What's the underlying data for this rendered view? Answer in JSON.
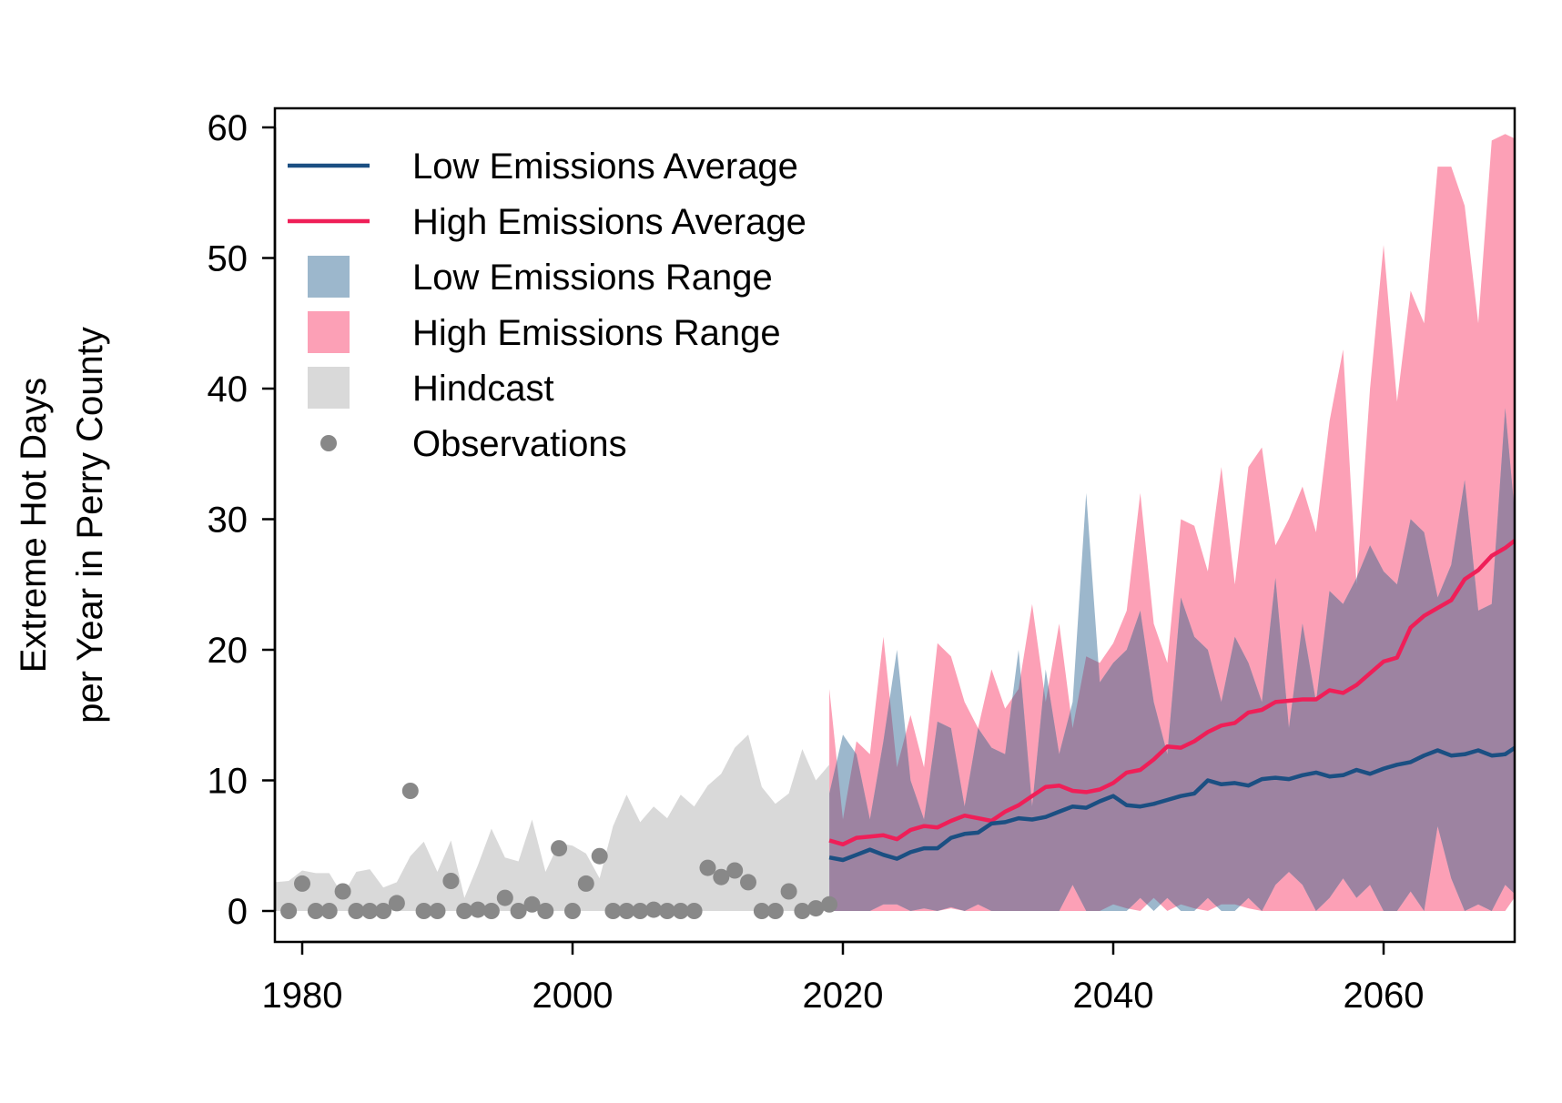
{
  "chart_data": {
    "type": "area",
    "xlabel": "",
    "ylabel_lines": [
      "Extreme Hot Days",
      "per Year in Perry County"
    ],
    "xlim": [
      1977,
      2071
    ],
    "ylim": [
      -2,
      60
    ],
    "xticks": [
      1980,
      2000,
      2020,
      2040,
      2060
    ],
    "yticks": [
      0,
      10,
      20,
      30,
      40,
      50,
      60
    ],
    "legend_position": "top-left",
    "colors": {
      "low_avg": "#1b4f82",
      "high_avg": "#ef1f58",
      "low_range": "#9cb7cc",
      "high_range": "#fca0b6",
      "overlap": "#9d83a1",
      "hindcast": "#d9d9d9",
      "observations": "#888888"
    },
    "legend": [
      {
        "label": "Low Emissions Average",
        "kind": "line",
        "color": "#1b4f82"
      },
      {
        "label": "High Emissions Average",
        "kind": "line",
        "color": "#ef1f58"
      },
      {
        "label": "Low Emissions Range",
        "kind": "box",
        "color": "#9cb7cc"
      },
      {
        "label": "High Emissions Range",
        "kind": "box",
        "color": "#fca0b6"
      },
      {
        "label": "Hindcast",
        "kind": "box",
        "color": "#d9d9d9"
      },
      {
        "label": "Observations",
        "kind": "point",
        "color": "#888888"
      }
    ],
    "series": {
      "hindcast": {
        "x": [
          1977,
          1978,
          1979,
          1980,
          1981,
          1982,
          1983,
          1984,
          1985,
          1986,
          1987,
          1988,
          1989,
          1990,
          1991,
          1992,
          1993,
          1994,
          1995,
          1996,
          1997,
          1998,
          1999,
          2000,
          2001,
          2002,
          2003,
          2004,
          2005,
          2006,
          2007,
          2008,
          2009,
          2010,
          2011,
          2012,
          2013,
          2014,
          2015,
          2016,
          2017,
          2018,
          2019
        ],
        "upper": [
          2.2,
          2.2,
          2.3,
          3.1,
          2.9,
          2.9,
          1.2,
          3,
          3.2,
          1.8,
          2.2,
          4.2,
          5.3,
          3,
          5.4,
          1,
          3.5,
          6.3,
          4.1,
          3.8,
          7,
          3,
          5.2,
          5,
          4.4,
          2.5,
          6.5,
          8.9,
          6.8,
          8,
          7.1,
          8.9,
          8,
          9.6,
          10.5,
          12.5,
          13.5,
          9.5,
          8.2,
          9,
          12.4,
          10,
          11.2
        ],
        "lower": [
          0,
          0,
          0,
          0,
          0,
          0,
          0,
          0,
          0,
          0,
          0,
          0,
          0,
          0,
          0,
          0,
          0,
          0,
          0,
          0,
          0,
          0,
          0,
          0,
          0,
          0,
          0,
          0,
          0,
          0,
          0,
          0,
          0,
          0,
          0,
          0,
          0,
          0,
          0,
          0,
          0,
          0,
          0
        ]
      },
      "observations": {
        "x": [
          1979,
          1980,
          1981,
          1982,
          1983,
          1984,
          1985,
          1986,
          1987,
          1988,
          1989,
          1990,
          1991,
          1992,
          1993,
          1994,
          1995,
          1996,
          1997,
          1998,
          1999,
          2000,
          2001,
          2002,
          2003,
          2004,
          2005,
          2006,
          2007,
          2008,
          2009,
          2010,
          2011,
          2012,
          2013,
          2014,
          2015,
          2016,
          2017,
          2018,
          2019
        ],
        "y": [
          0,
          2.1,
          0,
          0,
          1.5,
          0,
          0,
          0,
          0.6,
          9.2,
          0,
          0,
          2.3,
          0,
          0.1,
          0,
          1,
          0,
          0.5,
          0,
          4.8,
          0,
          2.1,
          4.2,
          0,
          0,
          0,
          0.1,
          0,
          0,
          0,
          3.3,
          2.6,
          3.1,
          2.2,
          0,
          0,
          1.5,
          0,
          0.2,
          0.5
        ]
      },
      "low_range": {
        "x": [
          2019,
          2020,
          2021,
          2022,
          2023,
          2024,
          2025,
          2026,
          2027,
          2028,
          2029,
          2030,
          2031,
          2032,
          2033,
          2034,
          2035,
          2036,
          2037,
          2038,
          2039,
          2040,
          2041,
          2042,
          2043,
          2044,
          2045,
          2046,
          2047,
          2048,
          2049,
          2050,
          2051,
          2052,
          2053,
          2054,
          2055,
          2056,
          2057,
          2058,
          2059,
          2060,
          2061,
          2062,
          2063,
          2064,
          2065,
          2066,
          2067,
          2068,
          2069,
          2070,
          2071
        ],
        "upper": [
          9,
          13.5,
          12,
          7,
          13,
          20,
          10,
          7,
          14.5,
          14,
          8,
          14,
          12.5,
          12,
          20,
          8,
          18.5,
          12,
          16,
          32,
          17.5,
          19,
          20,
          23,
          16,
          12,
          24,
          21,
          20,
          16,
          21,
          19,
          16,
          25.5,
          14,
          22,
          16,
          24.5,
          23.5,
          25.5,
          28,
          26,
          25,
          30,
          29,
          24,
          26.5,
          33,
          23,
          23.5,
          38.5,
          27,
          25
        ],
        "lower": [
          0,
          0,
          0,
          0,
          0.5,
          0.5,
          0,
          0.2,
          0,
          0.3,
          0,
          0.5,
          0,
          0,
          0,
          0,
          0,
          0,
          2,
          0,
          0,
          0,
          0,
          1,
          0,
          1,
          0,
          0,
          1,
          0,
          0,
          1,
          0,
          2,
          3,
          2,
          0,
          1,
          2.5,
          1,
          2,
          0,
          0,
          1.5,
          0,
          6.5,
          2.5,
          0,
          0.5,
          0,
          2,
          1,
          0
        ]
      },
      "high_range": {
        "x": [
          2019,
          2020,
          2021,
          2022,
          2023,
          2024,
          2025,
          2026,
          2027,
          2028,
          2029,
          2030,
          2031,
          2032,
          2033,
          2034,
          2035,
          2036,
          2037,
          2038,
          2039,
          2040,
          2041,
          2042,
          2043,
          2044,
          2045,
          2046,
          2047,
          2048,
          2049,
          2050,
          2051,
          2052,
          2053,
          2054,
          2055,
          2056,
          2057,
          2058,
          2059,
          2060,
          2061,
          2062,
          2063,
          2064,
          2065,
          2066,
          2067,
          2068,
          2069,
          2070,
          2071
        ],
        "upper": [
          17,
          7,
          13,
          12,
          21,
          11,
          15,
          11,
          20.5,
          19.5,
          16,
          14,
          18.5,
          15.5,
          17,
          23.5,
          16,
          22,
          14,
          19.5,
          19,
          20.5,
          23,
          32,
          22,
          19,
          30,
          29.5,
          26,
          34,
          25,
          34,
          35.5,
          28,
          30,
          32.5,
          29,
          37.5,
          43,
          25,
          40,
          51,
          39,
          47.5,
          45,
          57,
          57,
          54,
          45,
          59,
          59.5,
          59,
          58
        ],
        "lower": [
          0,
          0,
          0,
          0,
          0,
          0,
          0,
          0,
          0,
          0.2,
          0,
          0,
          0,
          0,
          0,
          0,
          0,
          0,
          0,
          0,
          0,
          0.5,
          0.2,
          0,
          1,
          0,
          0.5,
          0.2,
          0,
          0.5,
          0.5,
          0.2,
          0,
          0,
          0,
          0,
          0,
          0,
          0,
          0,
          0,
          0,
          0,
          0,
          0,
          0,
          0,
          0,
          0,
          0,
          0,
          1.5,
          0
        ]
      },
      "low_avg": {
        "x": [
          2019,
          2020,
          2021,
          2022,
          2023,
          2024,
          2025,
          2026,
          2027,
          2028,
          2029,
          2030,
          2031,
          2032,
          2033,
          2034,
          2035,
          2036,
          2037,
          2038,
          2039,
          2040,
          2041,
          2042,
          2043,
          2044,
          2045,
          2046,
          2047,
          2048,
          2049,
          2050,
          2051,
          2052,
          2053,
          2054,
          2055,
          2056,
          2057,
          2058,
          2059,
          2060,
          2061,
          2062,
          2063,
          2064,
          2065,
          2066,
          2067,
          2068,
          2069,
          2070
        ],
        "y": [
          4.1,
          3.9,
          4.3,
          4.7,
          4.3,
          4,
          4.5,
          4.8,
          4.8,
          5.6,
          5.9,
          6,
          6.7,
          6.8,
          7.1,
          7,
          7.2,
          7.6,
          8,
          7.9,
          8.4,
          8.8,
          8.1,
          8,
          8.2,
          8.5,
          8.8,
          9,
          10,
          9.7,
          9.8,
          9.6,
          10.1,
          10.2,
          10.1,
          10.4,
          10.6,
          10.3,
          10.4,
          10.8,
          10.5,
          10.9,
          11.2,
          11.4,
          11.9,
          12.3,
          11.9,
          12,
          12.3,
          11.9,
          12,
          12.7
        ]
      },
      "high_avg": {
        "x": [
          2019,
          2020,
          2021,
          2022,
          2023,
          2024,
          2025,
          2026,
          2027,
          2028,
          2029,
          2030,
          2031,
          2032,
          2033,
          2034,
          2035,
          2036,
          2037,
          2038,
          2039,
          2040,
          2041,
          2042,
          2043,
          2044,
          2045,
          2046,
          2047,
          2048,
          2049,
          2050,
          2051,
          2052,
          2053,
          2054,
          2055,
          2056,
          2057,
          2058,
          2059,
          2060,
          2061,
          2062,
          2063,
          2064,
          2065,
          2066,
          2067,
          2068,
          2069,
          2070
        ],
        "y": [
          5.4,
          5.1,
          5.6,
          5.7,
          5.8,
          5.5,
          6.2,
          6.5,
          6.4,
          6.9,
          7.3,
          7.1,
          6.9,
          7.6,
          8.1,
          8.8,
          9.5,
          9.6,
          9.2,
          9.1,
          9.3,
          9.8,
          10.6,
          10.8,
          11.6,
          12.6,
          12.5,
          13,
          13.7,
          14.2,
          14.4,
          15.2,
          15.4,
          16,
          16.1,
          16.2,
          16.2,
          16.9,
          16.7,
          17.3,
          18.2,
          19.1,
          19.4,
          21.7,
          22.6,
          23.2,
          23.8,
          25.4,
          26.1,
          27.2,
          27.8,
          28.6
        ]
      }
    }
  }
}
